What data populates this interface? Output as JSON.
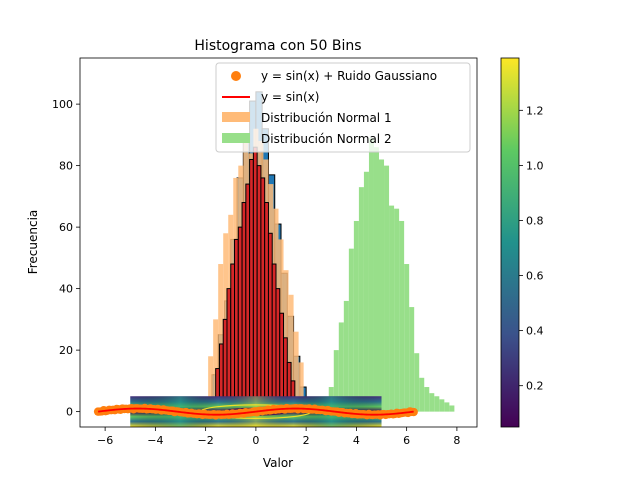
{
  "chart_data": {
    "type": "bar",
    "title": "Histograma con 50 Bins",
    "xlabel": "Valor",
    "ylabel": "Frecuencia",
    "xlim": [
      -7,
      8.8
    ],
    "ylim": [
      -5,
      115
    ],
    "xticks": [
      -6,
      -4,
      -2,
      0,
      2,
      4,
      6,
      8
    ],
    "yticks": [
      0,
      20,
      40,
      60,
      80,
      100
    ],
    "grid": false,
    "legend_position": "upper right",
    "legend": [
      {
        "label": "y = sin(x) + Ruido Gaussiano",
        "marker": "circle",
        "color": "#ff7f0e"
      },
      {
        "label": "y = sin(x)",
        "marker": "line",
        "color": "#ff0000"
      },
      {
        "label": "Distribución Normal 1",
        "marker": "patch",
        "color": "#ffbb78"
      },
      {
        "label": "Distribución Normal 2",
        "marker": "patch",
        "color": "#98df8a"
      }
    ],
    "series": [
      {
        "type": "histogram",
        "color": "#1f77b4",
        "edgecolor": "#000000",
        "bins": [
          [
            -2.0,
            -1.75,
            4
          ],
          [
            -1.75,
            -1.5,
            12
          ],
          [
            -1.5,
            -1.25,
            25
          ],
          [
            -1.25,
            -1.0,
            36
          ],
          [
            -1.0,
            -0.75,
            56
          ],
          [
            -0.75,
            -0.5,
            76
          ],
          [
            -0.5,
            -0.25,
            90
          ],
          [
            -0.25,
            0.0,
            101
          ],
          [
            0.0,
            0.25,
            104
          ],
          [
            0.25,
            0.5,
            92
          ],
          [
            0.5,
            0.75,
            77
          ],
          [
            0.75,
            1.0,
            61
          ],
          [
            1.0,
            1.25,
            45
          ],
          [
            1.25,
            1.5,
            31
          ],
          [
            1.5,
            1.75,
            18
          ],
          [
            1.75,
            2.0,
            8
          ]
        ]
      },
      {
        "type": "histogram",
        "name": "Distribución Normal 1",
        "color": "#ffbb78",
        "opacity": 0.85,
        "bins": [
          [
            -1.9,
            -1.7,
            18
          ],
          [
            -1.7,
            -1.5,
            30
          ],
          [
            -1.5,
            -1.3,
            48
          ],
          [
            -1.3,
            -1.1,
            58
          ],
          [
            -1.1,
            -0.9,
            64
          ],
          [
            -0.9,
            -0.7,
            76
          ],
          [
            -0.7,
            -0.5,
            80
          ],
          [
            -0.5,
            -0.3,
            90
          ],
          [
            -0.3,
            -0.1,
            84
          ],
          [
            -0.1,
            0.1,
            92
          ],
          [
            0.1,
            0.3,
            88
          ],
          [
            0.3,
            0.5,
            82
          ],
          [
            0.5,
            0.7,
            74
          ],
          [
            0.7,
            0.9,
            66
          ],
          [
            0.9,
            1.1,
            56
          ],
          [
            1.1,
            1.3,
            46
          ],
          [
            1.3,
            1.5,
            38
          ],
          [
            1.5,
            1.7,
            26
          ],
          [
            1.7,
            1.9,
            16
          ]
        ]
      },
      {
        "type": "histogram",
        "color": "#d62728",
        "edgecolor": "#000000",
        "bins": [
          [
            -1.6,
            -1.45,
            14
          ],
          [
            -1.45,
            -1.3,
            22
          ],
          [
            -1.3,
            -1.15,
            30
          ],
          [
            -1.15,
            -1.0,
            40
          ],
          [
            -1.0,
            -0.85,
            48
          ],
          [
            -0.85,
            -0.7,
            56
          ],
          [
            -0.7,
            -0.55,
            60
          ],
          [
            -0.55,
            -0.4,
            68
          ],
          [
            -0.4,
            -0.25,
            74
          ],
          [
            -0.25,
            -0.1,
            82
          ],
          [
            -0.1,
            0.05,
            86
          ],
          [
            0.05,
            0.2,
            80
          ],
          [
            0.2,
            0.35,
            76
          ],
          [
            0.35,
            0.5,
            68
          ],
          [
            0.5,
            0.65,
            58
          ],
          [
            0.65,
            0.8,
            48
          ],
          [
            0.8,
            0.95,
            40
          ],
          [
            0.95,
            1.1,
            32
          ],
          [
            1.1,
            1.25,
            24
          ],
          [
            1.25,
            1.4,
            16
          ],
          [
            1.4,
            1.55,
            10
          ]
        ]
      },
      {
        "type": "histogram",
        "name": "Distribución Normal 2",
        "color": "#98df8a",
        "bins": [
          [
            2.9,
            3.1,
            8
          ],
          [
            3.1,
            3.3,
            20
          ],
          [
            3.3,
            3.5,
            29
          ],
          [
            3.5,
            3.7,
            36
          ],
          [
            3.7,
            3.9,
            53
          ],
          [
            3.9,
            4.1,
            62
          ],
          [
            4.1,
            4.3,
            73
          ],
          [
            4.3,
            4.5,
            78
          ],
          [
            4.5,
            4.7,
            89
          ],
          [
            4.7,
            4.9,
            86
          ],
          [
            4.9,
            5.1,
            82
          ],
          [
            5.1,
            5.3,
            80
          ],
          [
            5.3,
            5.5,
            67
          ],
          [
            5.5,
            5.7,
            66
          ],
          [
            5.7,
            5.9,
            62
          ],
          [
            5.9,
            6.1,
            48
          ],
          [
            6.1,
            6.3,
            34
          ],
          [
            6.3,
            6.5,
            19
          ],
          [
            6.5,
            6.7,
            11
          ],
          [
            6.7,
            6.9,
            8
          ],
          [
            6.9,
            7.1,
            6
          ],
          [
            7.1,
            7.3,
            5
          ],
          [
            7.3,
            7.5,
            4
          ],
          [
            7.5,
            7.7,
            3
          ],
          [
            7.7,
            7.9,
            2
          ]
        ]
      },
      {
        "type": "scatter",
        "name": "y = sin(x) + Ruido Gaussiano",
        "color": "#ff7f0e",
        "x_range": [
          -6.28,
          6.28
        ],
        "function": "sin(x) + noise"
      },
      {
        "type": "line",
        "name": "y = sin(x)",
        "color": "#ff0000",
        "x_range": [
          -6.28,
          6.28
        ],
        "function": "sin(x)"
      },
      {
        "type": "heatmap",
        "extent_x": [
          -5,
          5
        ],
        "extent_y": [
          -5,
          5
        ],
        "colormap": "viridis",
        "vmin": 0.05,
        "vmax": 1.39
      }
    ],
    "colorbar": {
      "min": 0.05,
      "max": 1.39,
      "ticks": [
        0.2,
        0.4,
        0.6,
        0.8,
        1.0,
        1.2
      ],
      "tick_labels": [
        "0.2",
        "0.4",
        "0.6",
        "0.8",
        "1.0",
        "1.2"
      ]
    }
  }
}
